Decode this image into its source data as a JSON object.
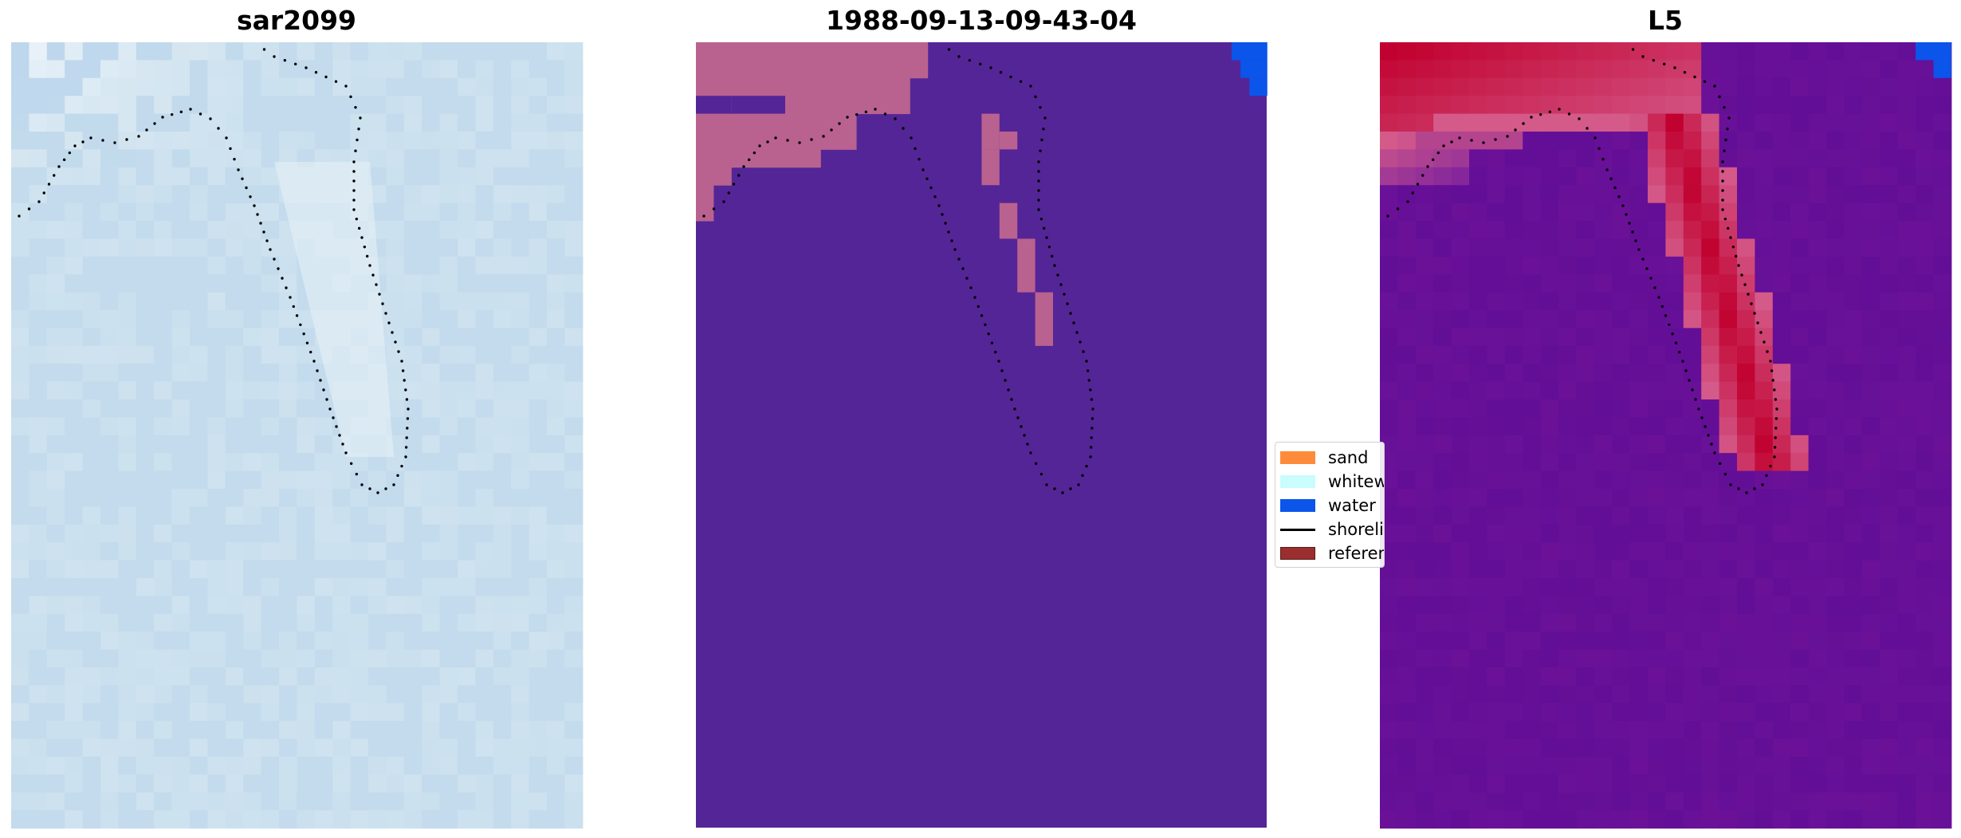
{
  "panels": [
    {
      "title": "sar2099"
    },
    {
      "title": "1988-09-13-09-43-04"
    },
    {
      "title": "L5"
    }
  ],
  "legend": {
    "items": [
      {
        "label": "sand",
        "color": "#fe8b3a",
        "kind": "patch"
      },
      {
        "label": "whitewater",
        "color": "#c9fcfc",
        "kind": "patch"
      },
      {
        "label": "water",
        "color": "#0b55eb",
        "kind": "patch"
      },
      {
        "label": "shoreline",
        "color": "#000000",
        "kind": "line"
      },
      {
        "label": "reference",
        "color": "#9b2f2f",
        "kind": "patch"
      }
    ]
  },
  "colors": {
    "sar_bg": "#c4dcec",
    "class_bg": "#542597",
    "class_pink": "#b9628f",
    "class_water": "#0b55eb",
    "prob_bg": "#6a1198",
    "prob_high": "#c1012f",
    "prob_band": "#d45a8a",
    "shoreline": "#000000"
  }
}
